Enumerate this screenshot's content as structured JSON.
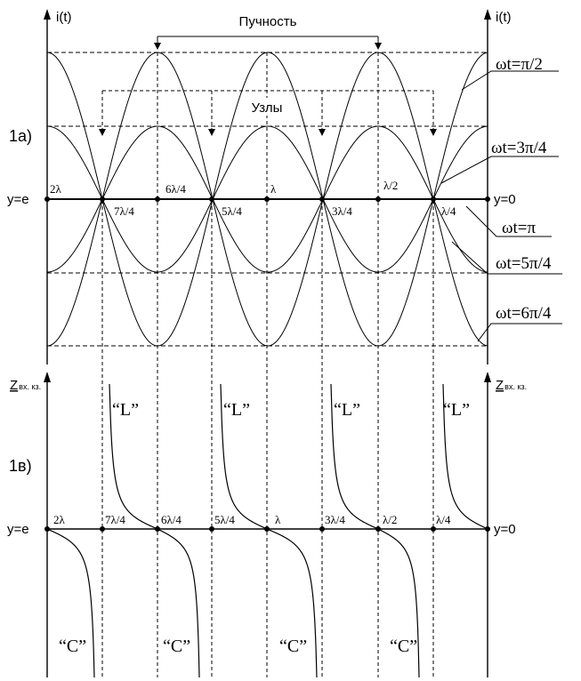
{
  "top": {
    "panel_label": "1а)",
    "axis_left": "i(t)",
    "axis_right": "i(t)",
    "antinode_label": "Пучность",
    "nodes_label": "Узлы",
    "end_left": "y=e",
    "end_right": "y=0",
    "ticks_above": [
      "2λ",
      "6λ/4",
      "λ",
      "λ/2"
    ],
    "ticks_below": [
      "7λ/4",
      "5λ/4",
      "3λ/4",
      "λ/4"
    ],
    "phases": [
      "ωt=π/2",
      "ωt=3π/4",
      "ωt=π",
      "ωt=5π/4",
      "ωt=6π/4"
    ]
  },
  "bottom": {
    "panel_label": "1в)",
    "axis_left_main": "Z",
    "axis_left_sub": "вх. кз.",
    "axis_right_main": "Z",
    "axis_right_sub": "вх. кз.",
    "end_left": "y=e",
    "end_right": "y=0",
    "ticks": [
      "2λ",
      "7λ/4",
      "6λ/4",
      "5λ/4",
      "λ",
      "3λ/4",
      "λ/2",
      "λ/4"
    ],
    "L_label": "“L”",
    "C_label": "“C”"
  }
}
